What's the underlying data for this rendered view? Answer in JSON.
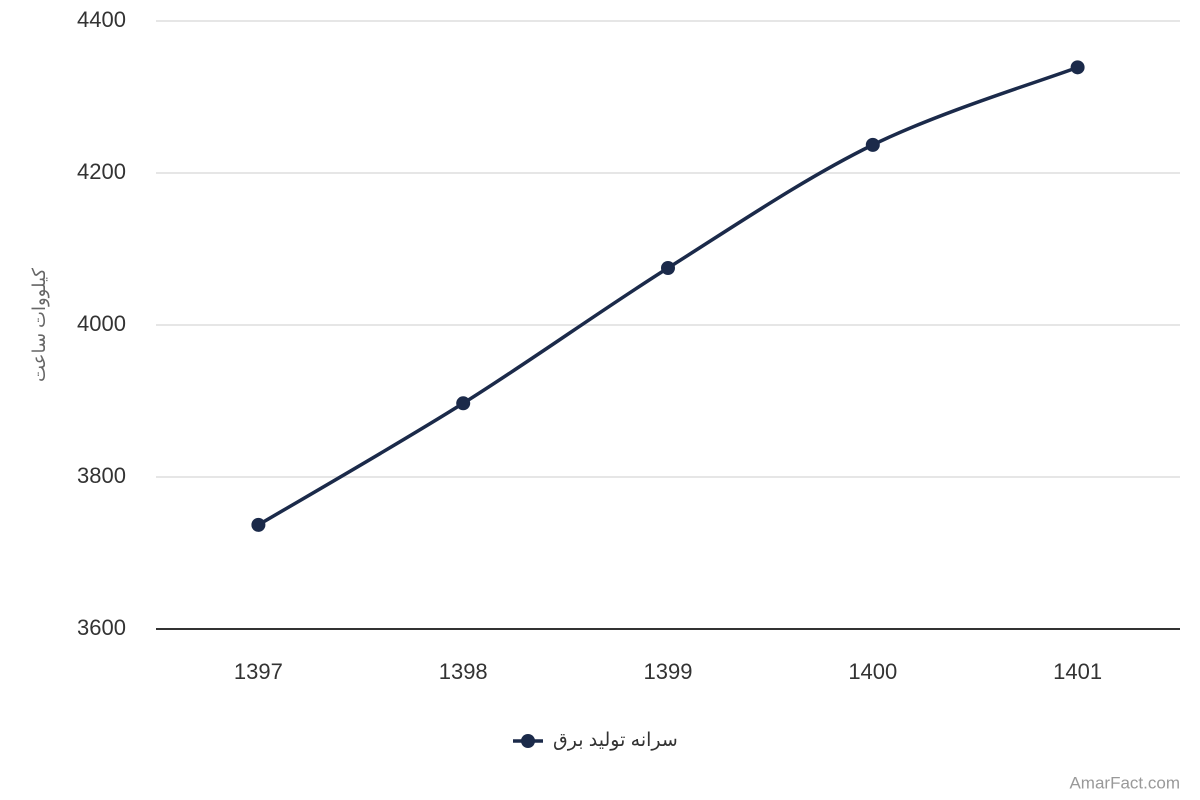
{
  "chart_data": {
    "type": "line",
    "y_label": "کیلووات ساعت",
    "categories": [
      "1397",
      "1398",
      "1399",
      "1400",
      "1401"
    ],
    "series": [
      {
        "name": "سرانه تولید برق",
        "color": "#1b2a4a",
        "values": [
          3737,
          3897,
          4075,
          4237,
          4339
        ]
      }
    ],
    "ylim": [
      3600,
      4400
    ],
    "yticks": [
      3600,
      3800,
      4000,
      4200,
      4400
    ],
    "grid": true,
    "smooth": true,
    "legend": "bottom",
    "credit": "AmarFact.com"
  }
}
